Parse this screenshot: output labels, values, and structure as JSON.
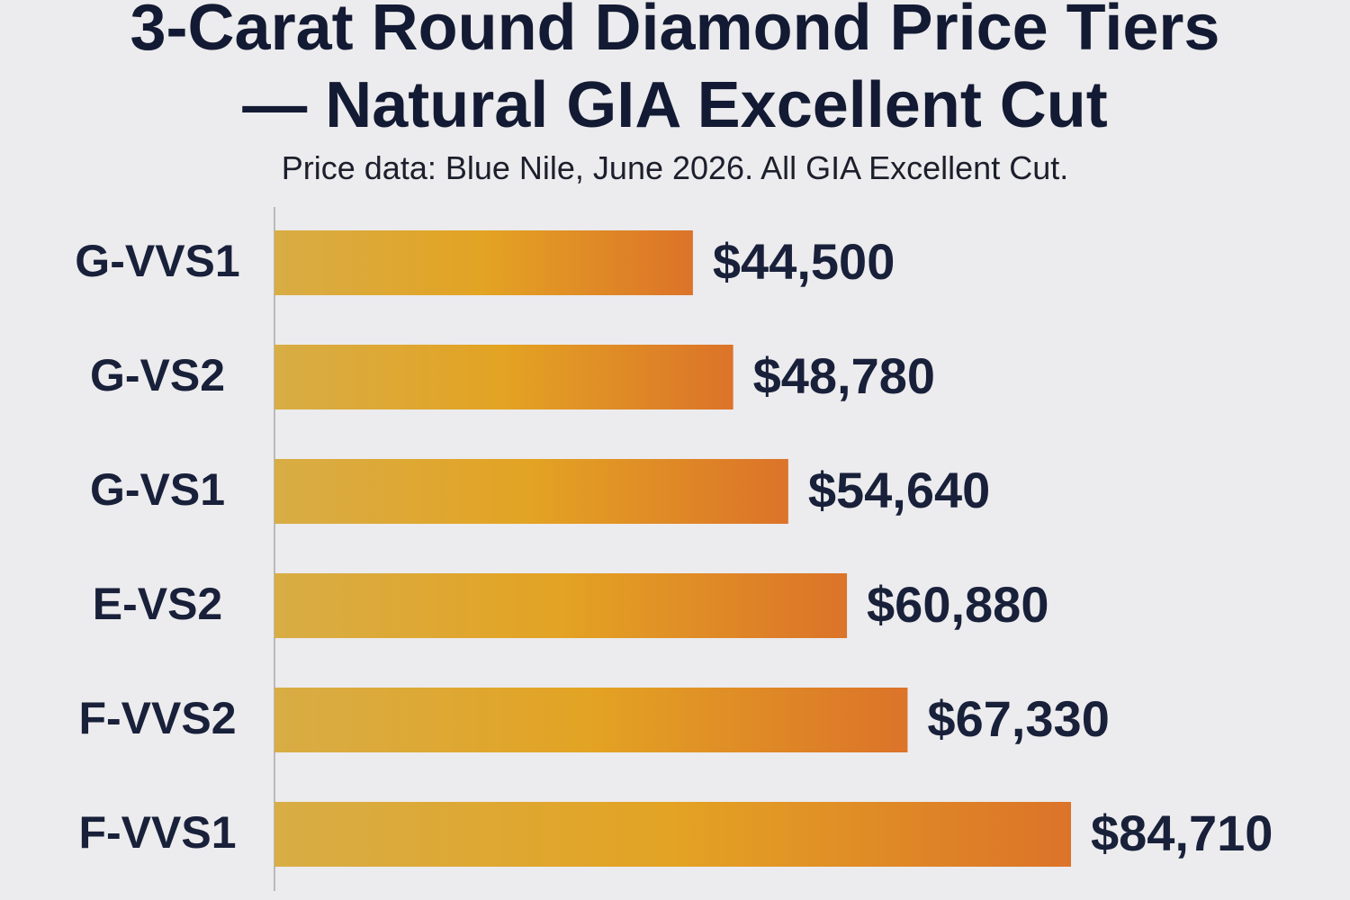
{
  "chart_data": {
    "type": "bar",
    "orientation": "horizontal",
    "title": "3-Carat Round Diamond Price Tiers\n— Natural GIA Excellent Cut",
    "subtitle": "Price data: Blue Nile, June 2026. All GIA Excellent Cut.",
    "categories": [
      "G-VVS1",
      "G-VS2",
      "G-VS1",
      "E-VS2",
      "F-VVS2",
      "F-VVS1"
    ],
    "values": [
      44500,
      48780,
      54640,
      60880,
      67330,
      84710
    ],
    "value_labels": [
      "$44,500",
      "$48,780",
      "$54,640",
      "$60,880",
      "$67,330",
      "$84,710"
    ],
    "gradient": [
      "#d8ad45",
      "#e3a323",
      "#dc7329"
    ]
  }
}
